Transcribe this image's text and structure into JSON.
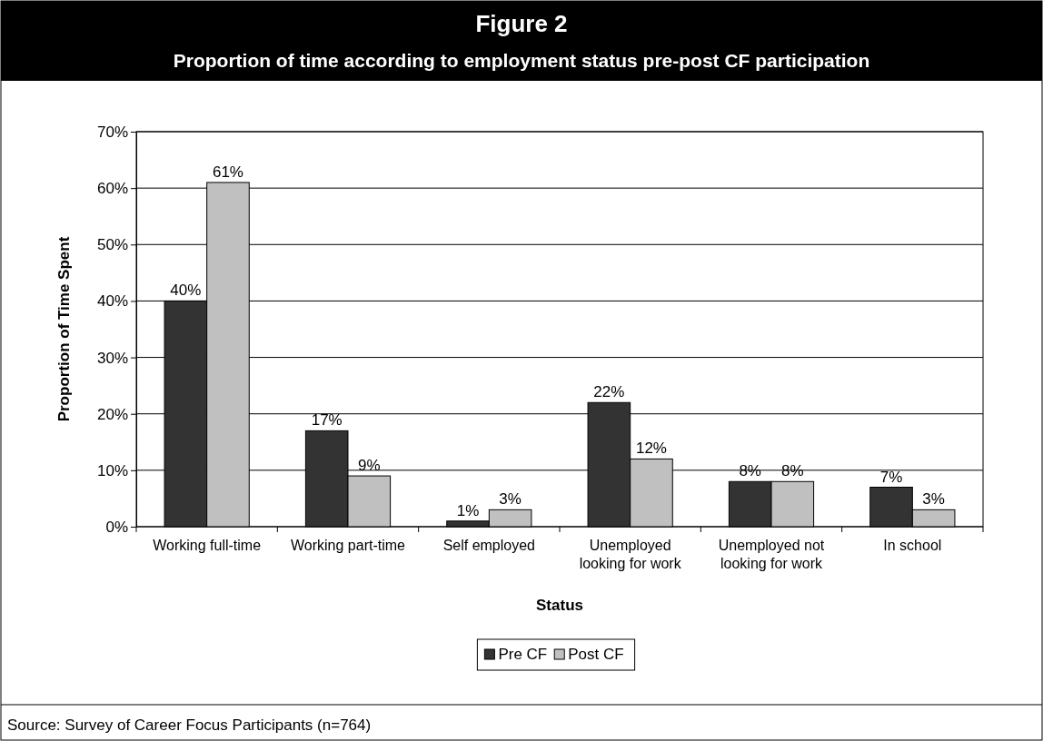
{
  "chart_data": {
    "type": "bar",
    "title": "Figure 2",
    "subtitle": "Proportion of time according to employment status pre-post CF participation",
    "xlabel": "Status",
    "ylabel": "Proportion of Time Spent",
    "categories": [
      "Working full-time",
      "Working part-time",
      "Self employed",
      "Unemployed looking for work",
      "Unemployed not looking for work",
      "In school"
    ],
    "series": [
      {
        "name": "Pre CF",
        "color": "#333333",
        "values": [
          40,
          17,
          1,
          22,
          8,
          7
        ]
      },
      {
        "name": "Post CF",
        "color": "#c0c0c0",
        "values": [
          61,
          9,
          3,
          12,
          8,
          3
        ]
      }
    ],
    "ylim": [
      0,
      70
    ],
    "yticks": [
      {
        "value": 0,
        "label": "0%"
      },
      {
        "value": 10,
        "label": "10%"
      },
      {
        "value": 20,
        "label": "20%"
      },
      {
        "value": 30,
        "label": "30%"
      },
      {
        "value": 40,
        "label": "40%"
      },
      {
        "value": 50,
        "label": "50%"
      },
      {
        "value": 60,
        "label": "60%"
      },
      {
        "value": 70,
        "label": "70%"
      }
    ],
    "value_labels": [
      [
        "40%",
        "17%",
        "1%",
        "22%",
        "8%",
        "7%"
      ],
      [
        "61%",
        "9%",
        "3%",
        "12%",
        "8%",
        "3%"
      ]
    ],
    "grid": "y",
    "legend": "bottom",
    "annotations": [
      "Source:  Survey of Career Focus Participants (n=764)"
    ]
  }
}
